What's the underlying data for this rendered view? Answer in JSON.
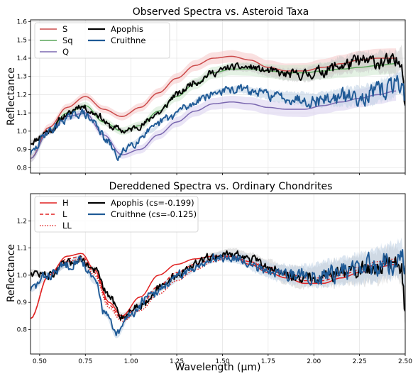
{
  "chart_data": [
    {
      "type": "line",
      "title": "Observed Spectra vs. Asteroid Taxa",
      "xlabel": "",
      "ylabel": "Reflectance",
      "xlim": [
        0.45,
        2.5
      ],
      "ylim": [
        0.77,
        1.61
      ],
      "xticks": [
        "0.50",
        "0.75",
        "1.00",
        "1.25",
        "1.50",
        "1.75",
        "2.00",
        "2.25",
        "2.50"
      ],
      "yticks": [
        "0.8",
        "0.9",
        "1.0",
        "1.1",
        "1.2",
        "1.3",
        "1.4",
        "1.5",
        "1.6"
      ],
      "grid": true,
      "legend_position": "top-left",
      "series": [
        {
          "name": "S",
          "color": "#cc4b4b",
          "style": "solid",
          "band": true,
          "band_color": "#f6c9c9",
          "x": [
            0.45,
            0.55,
            0.65,
            0.75,
            0.85,
            0.95,
            1.05,
            1.15,
            1.25,
            1.35,
            1.45,
            1.55,
            1.65,
            1.75,
            1.85,
            1.95,
            2.05,
            2.15,
            2.25,
            2.35,
            2.45
          ],
          "y": [
            0.85,
            1.02,
            1.13,
            1.19,
            1.12,
            1.08,
            1.13,
            1.21,
            1.29,
            1.36,
            1.4,
            1.41,
            1.39,
            1.35,
            1.33,
            1.33,
            1.35,
            1.37,
            1.39,
            1.4,
            1.4
          ]
        },
        {
          "name": "Sq",
          "color": "#5aa65a",
          "style": "solid",
          "band": true,
          "band_color": "#cde8cd",
          "x": [
            0.45,
            0.55,
            0.65,
            0.75,
            0.85,
            0.95,
            1.05,
            1.15,
            1.25,
            1.35,
            1.45,
            1.55,
            1.65,
            1.75,
            1.85,
            1.95,
            2.05,
            2.15,
            2.25,
            2.35,
            2.45
          ],
          "y": [
            0.85,
            1.0,
            1.1,
            1.14,
            1.05,
            1.0,
            1.03,
            1.11,
            1.19,
            1.26,
            1.32,
            1.34,
            1.34,
            1.33,
            1.32,
            1.32,
            1.33,
            1.34,
            1.35,
            1.36,
            1.37
          ]
        },
        {
          "name": "Q",
          "color": "#7b68b0",
          "style": "solid",
          "band": true,
          "band_color": "#d8d0ee",
          "x": [
            0.45,
            0.55,
            0.65,
            0.75,
            0.85,
            0.95,
            1.05,
            1.15,
            1.25,
            1.35,
            1.45,
            1.55,
            1.65,
            1.75,
            1.85,
            1.95,
            2.05,
            2.15,
            2.25,
            2.35,
            2.45
          ],
          "y": [
            0.85,
            1.0,
            1.08,
            1.1,
            0.98,
            0.87,
            0.9,
            0.98,
            1.05,
            1.11,
            1.15,
            1.16,
            1.15,
            1.13,
            1.12,
            1.12,
            1.14,
            1.16,
            1.18,
            1.2,
            1.22
          ]
        },
        {
          "name": "Apophis",
          "color": "#000000",
          "style": "solid",
          "noisy": true,
          "noise": 0.016,
          "seed": 11,
          "band": true,
          "band_color": "#c8c8c8",
          "x": [
            0.45,
            0.55,
            0.65,
            0.72,
            0.8,
            0.9,
            0.97,
            1.05,
            1.15,
            1.25,
            1.35,
            1.45,
            1.55,
            1.65,
            1.75,
            1.85,
            1.95,
            2.05,
            2.15,
            2.25,
            2.35,
            2.45,
            2.48,
            2.5
          ],
          "y": [
            0.94,
            1.0,
            1.09,
            1.14,
            1.1,
            1.02,
            1.0,
            1.03,
            1.1,
            1.2,
            1.27,
            1.32,
            1.35,
            1.35,
            1.33,
            1.31,
            1.31,
            1.33,
            1.36,
            1.38,
            1.38,
            1.37,
            1.4,
            1.17
          ]
        },
        {
          "name": "Cruithne",
          "color": "#1f5a96",
          "style": "solid",
          "noisy": true,
          "noise": 0.02,
          "seed": 29,
          "band": true,
          "band_color": "#bed0e4",
          "x": [
            0.45,
            0.55,
            0.65,
            0.73,
            0.8,
            0.87,
            0.93,
            1.0,
            1.1,
            1.2,
            1.3,
            1.4,
            1.5,
            1.6,
            1.7,
            1.8,
            1.9,
            2.0,
            2.1,
            2.2,
            2.3,
            2.4,
            2.48,
            2.5
          ],
          "y": [
            0.88,
            1.0,
            1.07,
            1.1,
            1.05,
            0.94,
            0.86,
            0.93,
            1.0,
            1.07,
            1.13,
            1.19,
            1.22,
            1.23,
            1.21,
            1.19,
            1.18,
            1.17,
            1.18,
            1.19,
            1.2,
            1.23,
            1.27,
            1.18
          ]
        }
      ]
    },
    {
      "type": "line",
      "title": "Dereddened Spectra vs. Ordinary Chondrites",
      "xlabel": "Wavelength (µm)",
      "ylabel": "Reflectance",
      "xlim": [
        0.45,
        2.5
      ],
      "ylim": [
        0.71,
        1.3
      ],
      "xticks": [
        "0.50",
        "0.75",
        "1.00",
        "1.25",
        "1.50",
        "1.75",
        "2.00",
        "2.25",
        "2.50"
      ],
      "yticks": [
        "0.8",
        "0.9",
        "1.0",
        "1.1",
        "1.2"
      ],
      "grid": true,
      "legend_position": "top-left",
      "series": [
        {
          "name": "H",
          "color": "#e02020",
          "style": "solid",
          "x": [
            0.45,
            0.55,
            0.65,
            0.73,
            0.8,
            0.88,
            0.95,
            1.05,
            1.15,
            1.25,
            1.35,
            1.45,
            1.55,
            1.65,
            1.75,
            1.85,
            1.95,
            2.05,
            2.15,
            2.25,
            2.35,
            2.45
          ],
          "y": [
            0.84,
            1.0,
            1.07,
            1.08,
            1.02,
            0.9,
            0.85,
            0.92,
            1.0,
            1.04,
            1.06,
            1.07,
            1.07,
            1.04,
            1.01,
            0.99,
            0.97,
            0.97,
            0.99,
            1.01,
            1.03,
            1.04
          ]
        },
        {
          "name": "L",
          "color": "#e02020",
          "style": "dashed",
          "x": [
            0.45,
            0.55,
            0.65,
            0.73,
            0.8,
            0.88,
            0.95,
            1.05,
            1.15,
            1.25,
            1.35,
            1.45,
            1.55,
            1.65,
            1.75,
            1.85,
            1.95,
            2.05,
            2.15,
            2.25,
            2.35,
            2.45
          ],
          "y": [
            0.84,
            1.0,
            1.06,
            1.07,
            1.01,
            0.89,
            0.84,
            0.89,
            0.96,
            1.01,
            1.04,
            1.06,
            1.07,
            1.05,
            1.02,
            1.0,
            0.98,
            0.98,
            1.0,
            1.02,
            1.04,
            1.05
          ]
        },
        {
          "name": "LL",
          "color": "#e02020",
          "style": "dotted",
          "x": [
            0.45,
            0.55,
            0.65,
            0.73,
            0.8,
            0.88,
            0.95,
            1.05,
            1.15,
            1.25,
            1.35,
            1.45,
            1.55,
            1.65,
            1.75,
            1.85,
            1.95,
            2.05,
            2.15,
            2.25,
            2.35,
            2.45
          ],
          "y": [
            0.84,
            1.0,
            1.05,
            1.06,
            1.0,
            0.88,
            0.83,
            0.87,
            0.93,
            0.98,
            1.02,
            1.05,
            1.07,
            1.05,
            1.03,
            1.01,
            0.99,
            0.99,
            1.01,
            1.03,
            1.05,
            1.06
          ]
        },
        {
          "name": "Apophis (cs=-0.199)",
          "color": "#000000",
          "style": "solid",
          "noisy": true,
          "noise": 0.013,
          "seed": 47,
          "band": true,
          "band_color": "#cfcfcf",
          "x": [
            0.45,
            0.55,
            0.65,
            0.72,
            0.8,
            0.88,
            0.95,
            1.05,
            1.15,
            1.25,
            1.35,
            1.45,
            1.55,
            1.65,
            1.75,
            1.85,
            1.95,
            2.05,
            2.15,
            2.25,
            2.35,
            2.45,
            2.48,
            2.5
          ],
          "y": [
            1.01,
            1.0,
            1.04,
            1.06,
            1.02,
            0.92,
            0.85,
            0.89,
            0.95,
            1.0,
            1.04,
            1.07,
            1.08,
            1.06,
            1.03,
            1.0,
            0.99,
            1.0,
            1.01,
            1.02,
            1.03,
            1.05,
            1.02,
            0.86
          ]
        },
        {
          "name": "Cruithne (cs=-0.125)",
          "color": "#1f5a96",
          "style": "solid",
          "noisy": true,
          "noise": 0.016,
          "seed": 83,
          "band": true,
          "band_color": "#bed0e4",
          "x": [
            0.45,
            0.55,
            0.65,
            0.72,
            0.8,
            0.86,
            0.92,
            1.0,
            1.1,
            1.2,
            1.3,
            1.4,
            1.5,
            1.6,
            1.7,
            1.8,
            1.9,
            2.0,
            2.1,
            2.2,
            2.3,
            2.4,
            2.48,
            2.5
          ],
          "y": [
            0.95,
            1.0,
            1.04,
            1.06,
            0.98,
            0.86,
            0.78,
            0.86,
            0.92,
            0.97,
            1.01,
            1.05,
            1.07,
            1.06,
            1.03,
            1.01,
            1.0,
            1.0,
            1.01,
            1.02,
            1.03,
            1.05,
            1.06,
            1.0
          ]
        }
      ]
    }
  ]
}
